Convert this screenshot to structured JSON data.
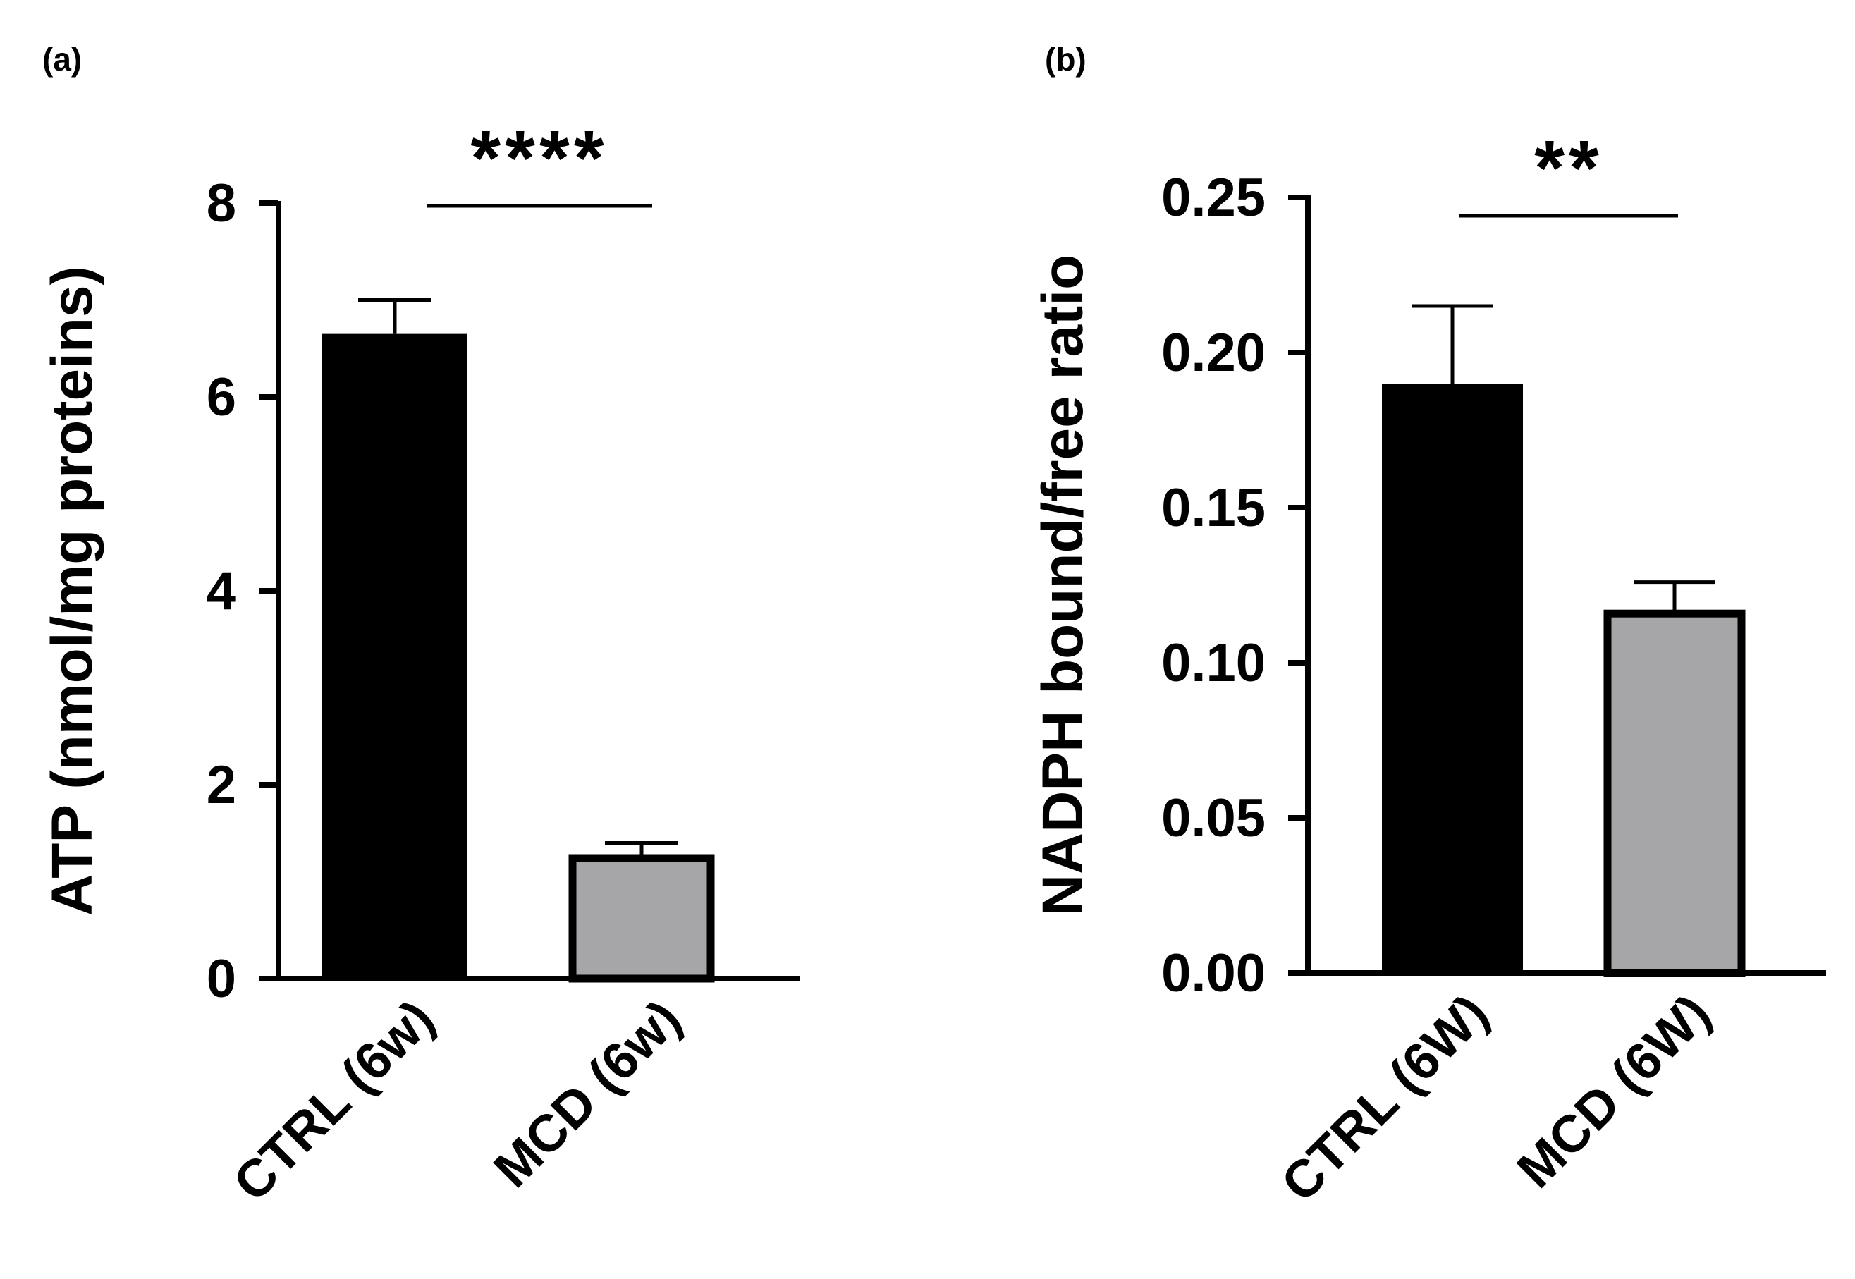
{
  "chart_data": [
    {
      "type": "bar",
      "panel_label": "(a)",
      "categories": [
        "CTRL (6w)",
        "MCD (6w)"
      ],
      "values": [
        6.65,
        1.28
      ],
      "errors": [
        0.35,
        0.12
      ],
      "bar_colors": [
        "#000000",
        "#a6a6a9"
      ],
      "ylabel": "ATP (nmol/mg proteins)",
      "ylim": [
        0,
        8
      ],
      "yticks": [
        0,
        2,
        4,
        6,
        8
      ],
      "ytick_labels": [
        "0",
        "2",
        "4",
        "6",
        "8"
      ],
      "significance": "****"
    },
    {
      "type": "bar",
      "panel_label": "(b)",
      "categories": [
        "CTRL (6W)",
        "MCD (6W)"
      ],
      "values": [
        0.19,
        0.117
      ],
      "errors": [
        0.025,
        0.009
      ],
      "bar_colors": [
        "#000000",
        "#a6a6a9"
      ],
      "ylabel": "NADPH bound/free ratio",
      "ylim": [
        0,
        0.25
      ],
      "yticks": [
        0,
        0.05,
        0.1,
        0.15,
        0.2,
        0.25
      ],
      "ytick_labels": [
        "0.00",
        "0.05",
        "0.10",
        "0.15",
        "0.20",
        "0.25"
      ],
      "significance": "**"
    }
  ]
}
